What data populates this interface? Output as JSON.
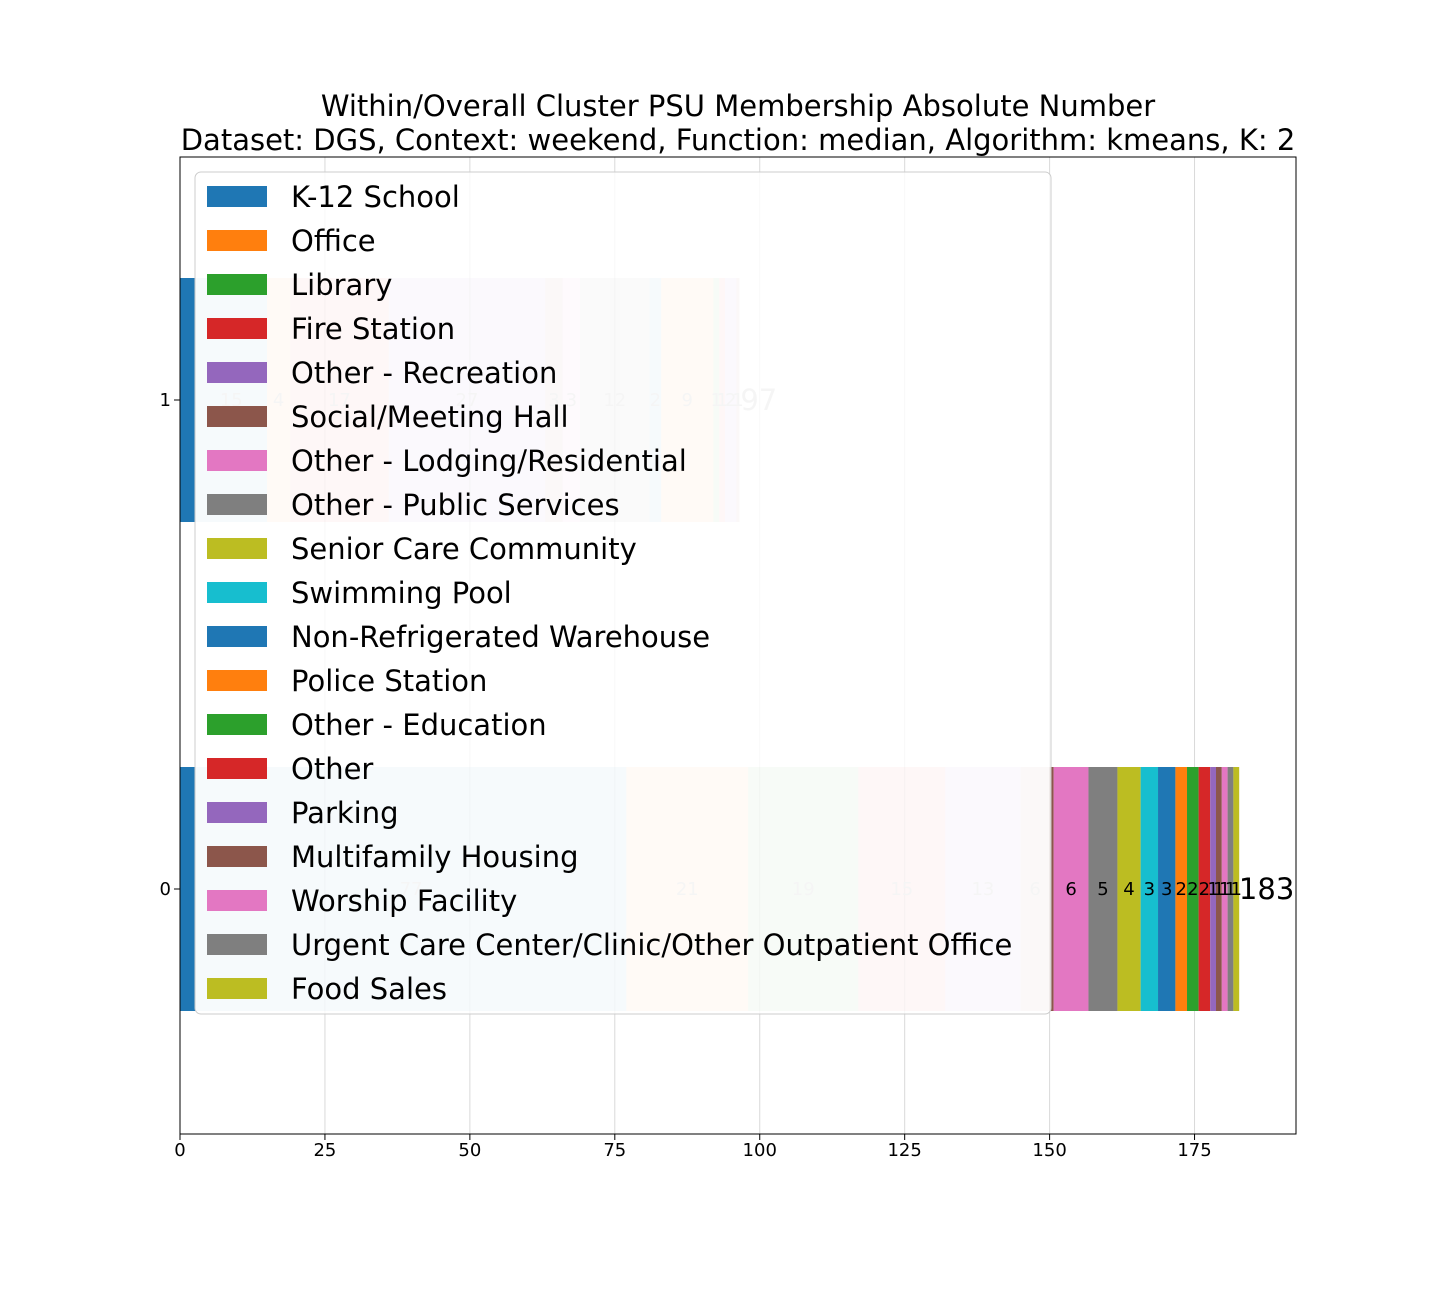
{
  "chart_data": {
    "type": "bar",
    "orientation": "horizontal",
    "stacked": true,
    "title": "Within/Overall Cluster PSU Membership Absolute Number",
    "subtitle": "Dataset: DGS, Context: weekend, Function: median, Algorithm: kmeans, K: 2",
    "xlabel": "",
    "ylabel": "",
    "xlim": [
      0,
      192.5
    ],
    "xticks": [
      0,
      25,
      50,
      75,
      100,
      125,
      150,
      175
    ],
    "categories": [
      "1",
      "0"
    ],
    "grid": true,
    "legend_position": "upper-left",
    "legend": [
      {
        "name": "K-12 School",
        "color": "#1f77b4"
      },
      {
        "name": "Office",
        "color": "#ff7f0e"
      },
      {
        "name": "Library",
        "color": "#2ca02c"
      },
      {
        "name": "Fire Station",
        "color": "#d62728"
      },
      {
        "name": "Other - Recreation",
        "color": "#9467bd"
      },
      {
        "name": "Social/Meeting Hall",
        "color": "#8c564b"
      },
      {
        "name": "Other - Lodging/Residential",
        "color": "#e377c2"
      },
      {
        "name": "Other - Public Services",
        "color": "#7f7f7f"
      },
      {
        "name": "Senior Care Community",
        "color": "#bcbd22"
      },
      {
        "name": "Swimming Pool",
        "color": "#17becf"
      },
      {
        "name": "Non-Refrigerated Warehouse",
        "color": "#1f77b4"
      },
      {
        "name": "Police Station",
        "color": "#ff7f0e"
      },
      {
        "name": "Other - Education",
        "color": "#2ca02c"
      },
      {
        "name": "Other",
        "color": "#d62728"
      },
      {
        "name": "Parking",
        "color": "#9467bd"
      },
      {
        "name": "Multifamily Housing",
        "color": "#8c564b"
      },
      {
        "name": "Worship Facility",
        "color": "#e377c2"
      },
      {
        "name": "Urgent Care Center/Clinic/Other Outpatient Office",
        "color": "#7f7f7f"
      },
      {
        "name": "Food Sales",
        "color": "#bcbd22"
      }
    ],
    "bars": [
      {
        "category": "1",
        "total": 97,
        "total_label": "97",
        "total_color": "#cccccc",
        "segments": [
          {
            "value": 2.7,
            "color": "#1f77b4",
            "alpha": 1.0,
            "label": ""
          },
          {
            "value": 12.3,
            "color": "#1f77b4",
            "alpha": 0.2,
            "label": "15"
          },
          {
            "value": 4,
            "color": "#ff7f0e",
            "alpha": 0.2,
            "label": "4"
          },
          {
            "value": 17,
            "color": "#d62728",
            "alpha": 0.2,
            "label": "17"
          },
          {
            "value": 27,
            "color": "#9467bd",
            "alpha": 0.2,
            "label": "27"
          },
          {
            "value": 3,
            "color": "#8c564b",
            "alpha": 0.2,
            "label": "3"
          },
          {
            "value": 3,
            "color": "#e377c2",
            "alpha": 0.2,
            "label": "3"
          },
          {
            "value": 12,
            "color": "#7f7f7f",
            "alpha": 0.2,
            "label": "12"
          },
          {
            "value": 2,
            "color": "#1f77b4",
            "alpha": 0.2,
            "label": "2"
          },
          {
            "value": 9,
            "color": "#ff7f0e",
            "alpha": 0.2,
            "label": "9"
          },
          {
            "value": 1,
            "color": "#2ca02c",
            "alpha": 0.2,
            "label": "1"
          },
          {
            "value": 1,
            "color": "#d62728",
            "alpha": 0.2,
            "label": "1"
          },
          {
            "value": 2,
            "color": "#9467bd",
            "alpha": 0.2,
            "label": "2"
          },
          {
            "value": 0.5,
            "color": "#8c564b",
            "alpha": 0.2,
            "label": "1"
          }
        ]
      },
      {
        "category": "0",
        "total": 183,
        "total_label": "183",
        "total_color": "#000000",
        "segments": [
          {
            "value": 2.7,
            "color": "#1f77b4",
            "alpha": 1.0,
            "label": ""
          },
          {
            "value": 74.3,
            "color": "#1f77b4",
            "alpha": 0.2,
            "label": "77"
          },
          {
            "value": 21,
            "color": "#ff7f0e",
            "alpha": 0.2,
            "label": "21"
          },
          {
            "value": 19,
            "color": "#2ca02c",
            "alpha": 0.2,
            "label": "19"
          },
          {
            "value": 15,
            "color": "#d62728",
            "alpha": 0.2,
            "label": "15"
          },
          {
            "value": 13,
            "color": "#9467bd",
            "alpha": 0.2,
            "label": "13"
          },
          {
            "value": 5,
            "color": "#8c564b",
            "alpha": 0.2,
            "label": "6"
          },
          {
            "value": 0.7,
            "color": "#8c564b",
            "alpha": 1.0,
            "label": ""
          },
          {
            "value": 6,
            "color": "#e377c2",
            "alpha": 1.0,
            "label": "6"
          },
          {
            "value": 5,
            "color": "#7f7f7f",
            "alpha": 1.0,
            "label": "5"
          },
          {
            "value": 4,
            "color": "#bcbd22",
            "alpha": 1.0,
            "label": "4"
          },
          {
            "value": 3,
            "color": "#17becf",
            "alpha": 1.0,
            "label": "3"
          },
          {
            "value": 3,
            "color": "#1f77b4",
            "alpha": 1.0,
            "label": "3"
          },
          {
            "value": 2,
            "color": "#ff7f0e",
            "alpha": 1.0,
            "label": "2"
          },
          {
            "value": 2,
            "color": "#2ca02c",
            "alpha": 1.0,
            "label": "2"
          },
          {
            "value": 2,
            "color": "#d62728",
            "alpha": 1.0,
            "label": "2"
          },
          {
            "value": 1,
            "color": "#9467bd",
            "alpha": 1.0,
            "label": "1"
          },
          {
            "value": 1,
            "color": "#8c564b",
            "alpha": 1.0,
            "label": "1"
          },
          {
            "value": 1,
            "color": "#e377c2",
            "alpha": 1.0,
            "label": "1"
          },
          {
            "value": 1,
            "color": "#7f7f7f",
            "alpha": 1.0,
            "label": "1"
          },
          {
            "value": 1,
            "color": "#bcbd22",
            "alpha": 1.0,
            "label": "1"
          }
        ]
      }
    ]
  }
}
